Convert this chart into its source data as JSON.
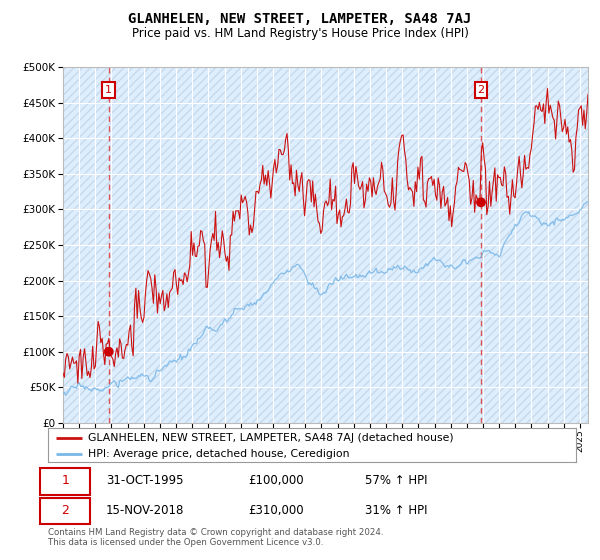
{
  "title": "GLANHELEN, NEW STREET, LAMPETER, SA48 7AJ",
  "subtitle": "Price paid vs. HM Land Registry's House Price Index (HPI)",
  "legend_line1": "GLANHELEN, NEW STREET, LAMPETER, SA48 7AJ (detached house)",
  "legend_line2": "HPI: Average price, detached house, Ceredigion",
  "annotation1_label": "1",
  "annotation1_date": "31-OCT-1995",
  "annotation1_price": "£100,000",
  "annotation1_hpi": "57% ↑ HPI",
  "annotation2_label": "2",
  "annotation2_date": "15-NOV-2018",
  "annotation2_price": "£310,000",
  "annotation2_hpi": "31% ↑ HPI",
  "footnote": "Contains HM Land Registry data © Crown copyright and database right 2024.\nThis data is licensed under the Open Government Licence v3.0.",
  "hpi_color": "#7ab8e8",
  "price_color": "#cc1111",
  "dot_color": "#cc0000",
  "vline_color": "#dd4444",
  "annotation_box_color": "#cc0000",
  "bg_color": "#ddeeff",
  "hatch_color": "#c8d8e8",
  "grid_color": "#ffffff",
  "ylim": [
    0,
    500000
  ],
  "yticks": [
    0,
    50000,
    100000,
    150000,
    200000,
    250000,
    300000,
    350000,
    400000,
    450000,
    500000
  ],
  "sale1_x": 1995.833,
  "sale1_y": 100000,
  "sale2_x": 2018.875,
  "sale2_y": 310000,
  "xmin": 1993,
  "xmax": 2025.5
}
